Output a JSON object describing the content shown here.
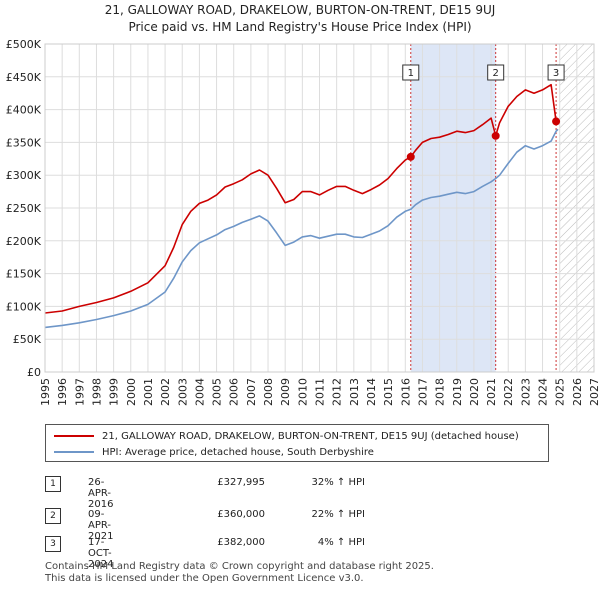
{
  "title_line1": "21, GALLOWAY ROAD, DRAKELOW, BURTON-ON-TRENT, DE15 9UJ",
  "title_line2": "Price paid vs. HM Land Registry's House Price Index (HPI)",
  "colors": {
    "property": "#cc0000",
    "hpi": "#6e96c8",
    "shade": "#dde6f6",
    "marker_line": "#cc3333",
    "grid": "#dddddd"
  },
  "chart_data": {
    "type": "line",
    "x_range": [
      1995,
      2027
    ],
    "y_range": [
      0,
      500000
    ],
    "y_ticks": [
      {
        "value": 0,
        "label": "£0"
      },
      {
        "value": 50000,
        "label": "£50K"
      },
      {
        "value": 100000,
        "label": "£100K"
      },
      {
        "value": 150000,
        "label": "£150K"
      },
      {
        "value": 200000,
        "label": "£200K"
      },
      {
        "value": 250000,
        "label": "£250K"
      },
      {
        "value": 300000,
        "label": "£300K"
      },
      {
        "value": 350000,
        "label": "£350K"
      },
      {
        "value": 400000,
        "label": "£400K"
      },
      {
        "value": 450000,
        "label": "£450K"
      },
      {
        "value": 500000,
        "label": "£500K"
      }
    ],
    "x_ticks": [
      "1995",
      "1996",
      "1997",
      "1998",
      "1999",
      "2000",
      "2001",
      "2002",
      "2003",
      "2004",
      "2005",
      "2006",
      "2007",
      "2008",
      "2009",
      "2010",
      "2011",
      "2012",
      "2013",
      "2014",
      "2015",
      "2016",
      "2017",
      "2018",
      "2019",
      "2020",
      "2021",
      "2022",
      "2023",
      "2024",
      "2025",
      "2026",
      "2027"
    ],
    "shaded_span": [
      2016.32,
      2021.27
    ],
    "future_from": 2025.0,
    "series": [
      {
        "name": "21, GALLOWAY ROAD, DRAKELOW, BURTON-ON-TRENT, DE15 9UJ (detached house)",
        "x": [
          1995.0,
          1996.0,
          1997.0,
          1998.0,
          1999.0,
          2000.0,
          2001.0,
          2002.0,
          2002.5,
          2003.0,
          2003.5,
          2004.0,
          2004.5,
          2005.0,
          2005.5,
          2006.0,
          2006.5,
          2007.0,
          2007.5,
          2008.0,
          2008.5,
          2009.0,
          2009.5,
          2010.0,
          2010.5,
          2011.0,
          2011.5,
          2012.0,
          2012.5,
          2013.0,
          2013.5,
          2014.0,
          2014.5,
          2015.0,
          2015.5,
          2016.0,
          2016.32,
          2016.6,
          2017.0,
          2017.5,
          2018.0,
          2018.5,
          2019.0,
          2019.5,
          2020.0,
          2020.5,
          2021.0,
          2021.27,
          2021.5,
          2022.0,
          2022.5,
          2023.0,
          2023.5,
          2024.0,
          2024.5,
          2024.79,
          2024.9
        ],
        "values": [
          90000,
          93000,
          100000,
          106000,
          113000,
          123000,
          136000,
          162000,
          190000,
          225000,
          245000,
          257000,
          262000,
          270000,
          282000,
          287000,
          293000,
          302000,
          308000,
          300000,
          280000,
          258000,
          263000,
          275000,
          275000,
          270000,
          277000,
          283000,
          283000,
          277000,
          272000,
          278000,
          285000,
          295000,
          310000,
          323000,
          327995,
          338000,
          350000,
          356000,
          358000,
          362000,
          367000,
          365000,
          368000,
          377000,
          387000,
          360000,
          380000,
          405000,
          420000,
          430000,
          425000,
          430000,
          438000,
          382000,
          385000
        ]
      },
      {
        "name": "HPI: Average price, detached house, South Derbyshire",
        "x": [
          1995.0,
          1996.0,
          1997.0,
          1998.0,
          1999.0,
          2000.0,
          2001.0,
          2002.0,
          2002.5,
          2003.0,
          2003.5,
          2004.0,
          2004.5,
          2005.0,
          2005.5,
          2006.0,
          2006.5,
          2007.0,
          2007.5,
          2008.0,
          2008.5,
          2009.0,
          2009.5,
          2010.0,
          2010.5,
          2011.0,
          2011.5,
          2012.0,
          2012.5,
          2013.0,
          2013.5,
          2014.0,
          2014.5,
          2015.0,
          2015.5,
          2016.0,
          2016.32,
          2016.6,
          2017.0,
          2017.5,
          2018.0,
          2018.5,
          2019.0,
          2019.5,
          2020.0,
          2020.5,
          2021.0,
          2021.27,
          2021.5,
          2022.0,
          2022.5,
          2023.0,
          2023.5,
          2024.0,
          2024.5,
          2024.79,
          2024.9
        ],
        "values": [
          68000,
          71000,
          75000,
          80000,
          86000,
          93000,
          103000,
          122000,
          143000,
          168000,
          185000,
          197000,
          203000,
          209000,
          217000,
          222000,
          228000,
          233000,
          238000,
          230000,
          212000,
          193000,
          198000,
          206000,
          208000,
          204000,
          207000,
          210000,
          210000,
          206000,
          205000,
          210000,
          215000,
          223000,
          236000,
          245000,
          248000,
          255000,
          262000,
          266000,
          268000,
          271000,
          274000,
          272000,
          275000,
          283000,
          290000,
          295000,
          300000,
          318000,
          335000,
          345000,
          340000,
          345000,
          352000,
          367000,
          370000
        ]
      }
    ],
    "sales": [
      {
        "id": "1",
        "x": 2016.32,
        "value": 327995,
        "date": "26-APR-2016",
        "price": "£327,995",
        "hpi": "32% ↑ HPI"
      },
      {
        "id": "2",
        "x": 2021.27,
        "value": 360000,
        "date": "09-APR-2021",
        "price": "£360,000",
        "hpi": "22% ↑ HPI"
      },
      {
        "id": "3",
        "x": 2024.79,
        "value": 382000,
        "date": "17-OCT-2024",
        "price": "£382,000",
        "hpi": "4% ↑ HPI"
      }
    ]
  },
  "legend": {
    "property": "21, GALLOWAY ROAD, DRAKELOW, BURTON-ON-TRENT, DE15 9UJ (detached house)",
    "hpi": "HPI: Average price, detached house, South Derbyshire"
  },
  "footer_line1": "Contains HM Land Registry data © Crown copyright and database right 2025.",
  "footer_line2": "This data is licensed under the Open Government Licence v3.0."
}
